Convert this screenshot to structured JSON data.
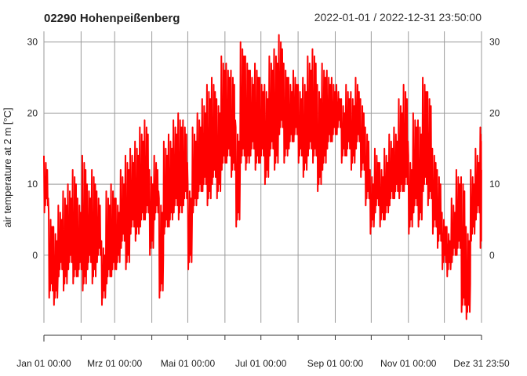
{
  "header": {
    "station_title": "02290 Hohenpeißenberg",
    "period": "2022-01-01 / 2022-12-31 23:50:00"
  },
  "chart_data": {
    "type": "line",
    "ylabel": "air temperature at 2 m [°C]",
    "ylim": [
      -9.5,
      31.5
    ],
    "y_ticks": [
      0,
      10,
      20,
      30
    ],
    "x_range": [
      "2022-01-01 00:00",
      "2022-12-31 23:50"
    ],
    "x_tick_labels": [
      "Jan 01 00:00",
      "Mrz 01 00:00",
      "Mai 01 00:00",
      "Jul 01 00:00",
      "Sep 01 00:00",
      "Nov 01 00:00",
      "Dez 31 23:50"
    ],
    "x_tick_dates": [
      "2022-01-01",
      "2022-03-01",
      "2022-05-01",
      "2022-07-01",
      "2022-09-01",
      "2022-11-01",
      "2022-12-31"
    ],
    "grid": true,
    "line_color": "#ff0000",
    "series": [
      {
        "x": [
          "2022-01-01",
          "2022-01-05",
          "2022-01-09",
          "2022-01-13",
          "2022-01-17",
          "2022-01-21",
          "2022-01-25",
          "2022-01-29",
          "2022-02-02",
          "2022-02-06",
          "2022-02-10",
          "2022-02-14",
          "2022-02-18",
          "2022-02-22",
          "2022-02-26",
          "2022-03-02",
          "2022-03-06",
          "2022-03-10",
          "2022-03-14",
          "2022-03-18",
          "2022-03-22",
          "2022-03-26",
          "2022-03-30",
          "2022-04-03",
          "2022-04-07",
          "2022-04-11",
          "2022-04-15",
          "2022-04-19",
          "2022-04-23",
          "2022-04-27",
          "2022-05-01",
          "2022-05-05",
          "2022-05-09",
          "2022-05-13",
          "2022-05-17",
          "2022-05-21",
          "2022-05-25",
          "2022-05-29",
          "2022-06-02",
          "2022-06-06",
          "2022-06-10",
          "2022-06-14",
          "2022-06-18",
          "2022-06-22",
          "2022-06-26",
          "2022-06-30",
          "2022-07-04",
          "2022-07-08",
          "2022-07-12",
          "2022-07-16",
          "2022-07-20",
          "2022-07-24",
          "2022-07-28",
          "2022-08-01",
          "2022-08-05",
          "2022-08-09",
          "2022-08-13",
          "2022-08-17",
          "2022-08-21",
          "2022-08-25",
          "2022-08-29",
          "2022-09-02",
          "2022-09-06",
          "2022-09-10",
          "2022-09-14",
          "2022-09-18",
          "2022-09-22",
          "2022-09-26",
          "2022-09-30",
          "2022-10-04",
          "2022-10-08",
          "2022-10-12",
          "2022-10-16",
          "2022-10-20",
          "2022-10-24",
          "2022-10-28",
          "2022-11-01",
          "2022-11-05",
          "2022-11-09",
          "2022-11-13",
          "2022-11-17",
          "2022-11-21",
          "2022-11-25",
          "2022-11-29",
          "2022-12-03",
          "2022-12-07",
          "2022-12-11",
          "2022-12-15",
          "2022-12-19",
          "2022-12-23",
          "2022-12-27",
          "2022-12-31"
        ],
        "y_min": [
          6,
          -6,
          -7,
          -3,
          -5,
          -2,
          -4,
          -3,
          -5,
          -2,
          -4,
          -1,
          -7,
          -4,
          -3,
          -2,
          1,
          -2,
          3,
          2,
          4,
          5,
          0,
          5,
          -6,
          3,
          4,
          6,
          5,
          7,
          -2,
          6,
          8,
          9,
          7,
          10,
          8,
          12,
          13,
          11,
          4,
          13,
          12,
          14,
          12,
          13,
          10,
          14,
          12,
          17,
          13,
          15,
          16,
          13,
          11,
          14,
          13,
          9,
          12,
          15,
          16,
          17,
          13,
          14,
          12,
          15,
          11,
          7,
          3,
          6,
          4,
          5,
          7,
          8,
          8,
          9,
          3,
          6,
          4,
          9,
          7,
          3,
          1,
          -2,
          -3,
          -1,
          0,
          -8,
          -9,
          2,
          5,
          1
        ],
        "y_max": [
          14,
          6,
          4,
          7,
          9,
          10,
          12,
          8,
          14,
          10,
          12,
          9,
          2,
          9,
          10,
          8,
          12,
          14,
          15,
          16,
          18,
          19,
          12,
          14,
          8,
          16,
          17,
          19,
          20,
          19,
          10,
          18,
          20,
          22,
          24,
          25,
          22,
          28,
          27,
          26,
          18,
          30,
          28,
          26,
          27,
          25,
          24,
          28,
          29,
          31,
          27,
          25,
          26,
          24,
          25,
          28,
          29,
          24,
          27,
          26,
          25,
          24,
          22,
          24,
          23,
          25,
          22,
          18,
          12,
          15,
          13,
          15,
          17,
          18,
          22,
          24,
          14,
          20,
          19,
          25,
          23,
          15,
          12,
          6,
          4,
          8,
          12,
          11,
          4,
          12,
          15,
          18
        ],
        "y_end": [
          8,
          -2,
          -3,
          2,
          1,
          4,
          5,
          2,
          6,
          3,
          5,
          2,
          -3,
          2,
          4,
          3,
          6,
          5,
          9,
          10,
          11,
          12,
          6,
          9,
          0,
          10,
          11,
          13,
          12,
          13,
          5,
          12,
          14,
          16,
          16,
          18,
          15,
          20,
          20,
          19,
          12,
          22,
          21,
          20,
          20,
          19,
          17,
          22,
          21,
          24,
          20,
          20,
          21,
          19,
          18,
          21,
          20,
          17,
          20,
          20,
          20,
          20,
          17,
          19,
          17,
          20,
          16,
          12,
          7,
          10,
          8,
          10,
          12,
          13,
          15,
          16,
          9,
          13,
          11,
          17,
          15,
          9,
          6,
          2,
          0,
          3,
          6,
          1,
          -4,
          7,
          10,
          12
        ]
      }
    ]
  }
}
